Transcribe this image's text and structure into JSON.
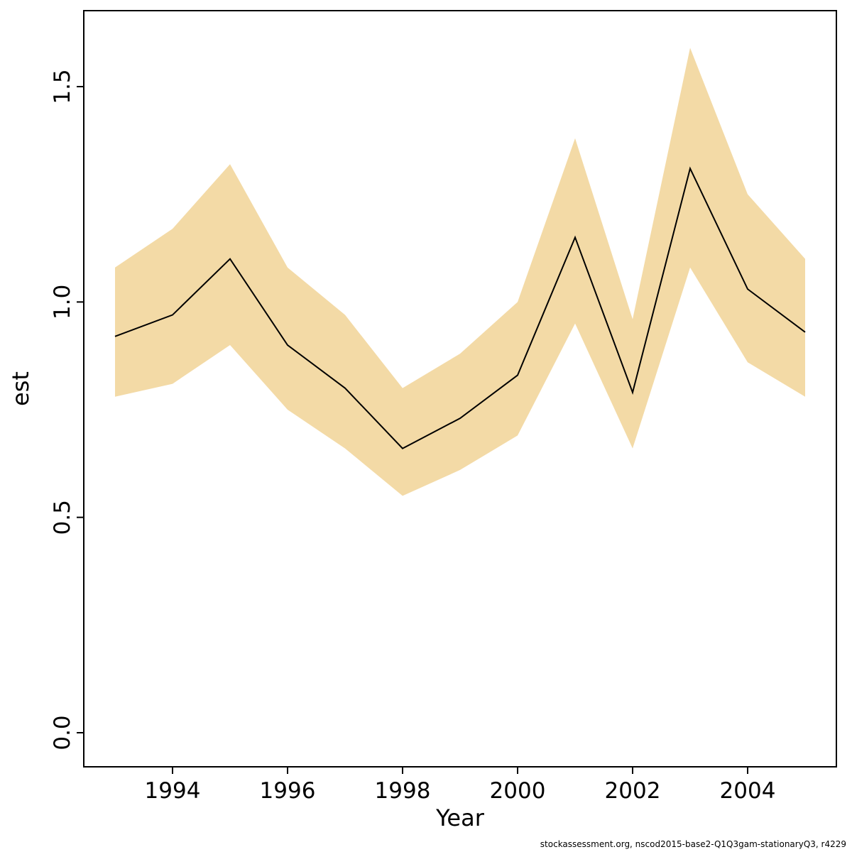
{
  "chart_data": {
    "type": "line",
    "title": "",
    "xlabel": "Year",
    "ylabel": "est",
    "x": [
      1993,
      1994,
      1995,
      1996,
      1997,
      1998,
      1999,
      2000,
      2001,
      2002,
      2003,
      2004,
      2005
    ],
    "series": [
      {
        "name": "est",
        "values": [
          0.92,
          0.97,
          1.1,
          0.9,
          0.8,
          0.66,
          0.73,
          0.83,
          1.15,
          0.79,
          1.31,
          1.03,
          0.93
        ]
      },
      {
        "name": "ci_lower",
        "values": [
          0.78,
          0.81,
          0.9,
          0.75,
          0.66,
          0.55,
          0.61,
          0.69,
          0.95,
          0.66,
          1.08,
          0.86,
          0.78
        ]
      },
      {
        "name": "ci_upper",
        "values": [
          1.08,
          1.17,
          1.32,
          1.08,
          0.97,
          0.8,
          0.88,
          1.0,
          1.38,
          0.96,
          1.59,
          1.25,
          1.1
        ]
      }
    ],
    "xticks": {
      "values": [
        1994,
        1996,
        1998,
        2000,
        2002,
        2004
      ],
      "labels": [
        "1994",
        "1996",
        "1998",
        "2000",
        "2002",
        "2004"
      ]
    },
    "yticks": {
      "values": [
        0.0,
        0.5,
        1.0,
        1.5
      ],
      "labels": [
        "0.0",
        "0.5",
        "1.0",
        "1.5"
      ]
    },
    "xlim": [
      1992.5,
      2005.5
    ],
    "ylim": [
      -0.04,
      1.63
    ],
    "grid": false,
    "legend_position": "none",
    "band_color": "#f3daa6",
    "line_color": "#000000",
    "box_color": "#000000"
  },
  "footer": {
    "text": "stockassessment.org, nscod2015-base2-Q1Q3gam-stationaryQ3, r4229"
  }
}
